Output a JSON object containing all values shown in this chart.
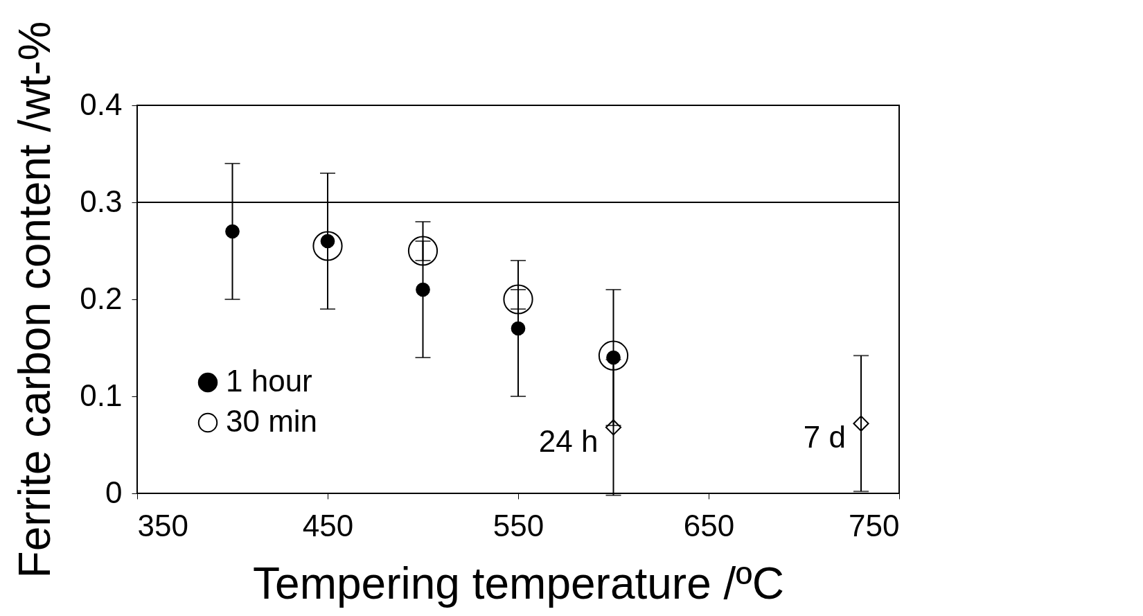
{
  "chart_data": {
    "type": "scatter",
    "xlabel": "Tempering temperature /ºC",
    "ylabel": "Ferrite carbon content /wt-%",
    "xlim": [
      350,
      750
    ],
    "xticks": [
      350,
      450,
      550,
      650,
      750
    ],
    "ylim": [
      0,
      0.4
    ],
    "yticks": [
      {
        "value": 0,
        "label": "0"
      },
      0.1,
      0.2,
      0.3,
      0.4
    ],
    "grid": false,
    "legend": "bottom left",
    "series": [
      {
        "name": "1 hour",
        "color": "#000000",
        "marker": "circle",
        "x": [
          400,
          450,
          500,
          550,
          600
        ],
        "values": [
          0.27,
          0.26,
          0.21,
          0.17,
          0.14
        ],
        "errors": [
          0.07,
          0.07,
          0.07,
          0.07,
          0.07
        ]
      },
      {
        "name": "30 min",
        "color": "#000000",
        "marker": "circle",
        "x": [
          450,
          500,
          550,
          600
        ],
        "values": [
          0.255,
          0.25,
          0.2,
          0.142
        ],
        "errors": [
          null,
          0.01,
          0.01,
          null
        ]
      },
      {
        "color": "#000000",
        "marker": "diamond",
        "x": [
          600,
          730
        ],
        "values": [
          0.068,
          0.072
        ],
        "errors": [
          0.07,
          0.07
        ]
      }
    ],
    "ref_lines": [
      {
        "axis": "y",
        "value": 0.3,
        "color": "#000000"
      }
    ],
    "annotations": [
      {
        "text": "24 h",
        "x": 600,
        "y": 0.068
      },
      {
        "text": "7 d",
        "x": 730,
        "y": 0.072
      }
    ]
  }
}
